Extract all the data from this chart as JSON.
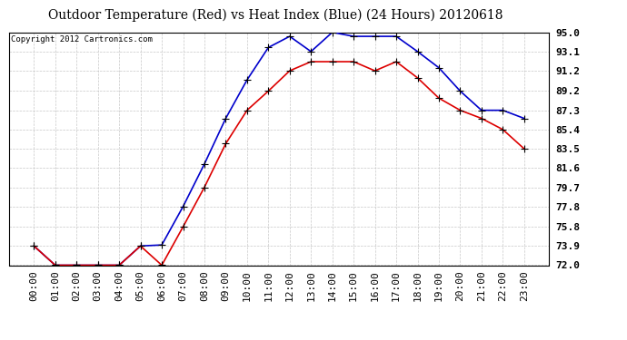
{
  "title": "Outdoor Temperature (Red) vs Heat Index (Blue) (24 Hours) 20120618",
  "copyright": "Copyright 2012 Cartronics.com",
  "x_labels": [
    "00:00",
    "01:00",
    "02:00",
    "03:00",
    "04:00",
    "05:00",
    "06:00",
    "07:00",
    "08:00",
    "09:00",
    "10:00",
    "11:00",
    "12:00",
    "13:00",
    "14:00",
    "15:00",
    "16:00",
    "17:00",
    "18:00",
    "19:00",
    "20:00",
    "21:00",
    "22:00",
    "23:00"
  ],
  "red_temp": [
    73.9,
    72.0,
    72.0,
    72.0,
    72.0,
    73.9,
    72.0,
    75.8,
    79.7,
    84.0,
    87.3,
    89.2,
    91.2,
    92.1,
    92.1,
    92.1,
    91.2,
    92.1,
    90.5,
    88.5,
    87.3,
    86.5,
    85.4,
    83.5
  ],
  "blue_heat": [
    73.9,
    72.0,
    72.0,
    72.0,
    72.0,
    73.9,
    74.0,
    77.8,
    82.0,
    86.5,
    90.3,
    93.5,
    94.6,
    93.1,
    95.0,
    94.6,
    94.6,
    94.6,
    93.1,
    91.5,
    89.2,
    87.3,
    87.3,
    86.5
  ],
  "ylim_min": 72.0,
  "ylim_max": 95.0,
  "yticks": [
    72.0,
    73.9,
    75.8,
    77.8,
    79.7,
    81.6,
    83.5,
    85.4,
    87.3,
    89.2,
    91.2,
    93.1,
    95.0
  ],
  "ytick_labels": [
    "72.0",
    "73.9",
    "75.8",
    "77.8",
    "79.7",
    "81.6",
    "83.5",
    "85.4",
    "87.3",
    "89.2",
    "91.2",
    "93.1",
    "95.0"
  ],
  "background_color": "#ffffff",
  "grid_color": "#c8c8c8",
  "red_color": "#dd0000",
  "blue_color": "#0000cc",
  "title_fontsize": 10,
  "copyright_fontsize": 6.5,
  "tick_fontsize": 8,
  "marker_size": 3,
  "linewidth": 1.2
}
